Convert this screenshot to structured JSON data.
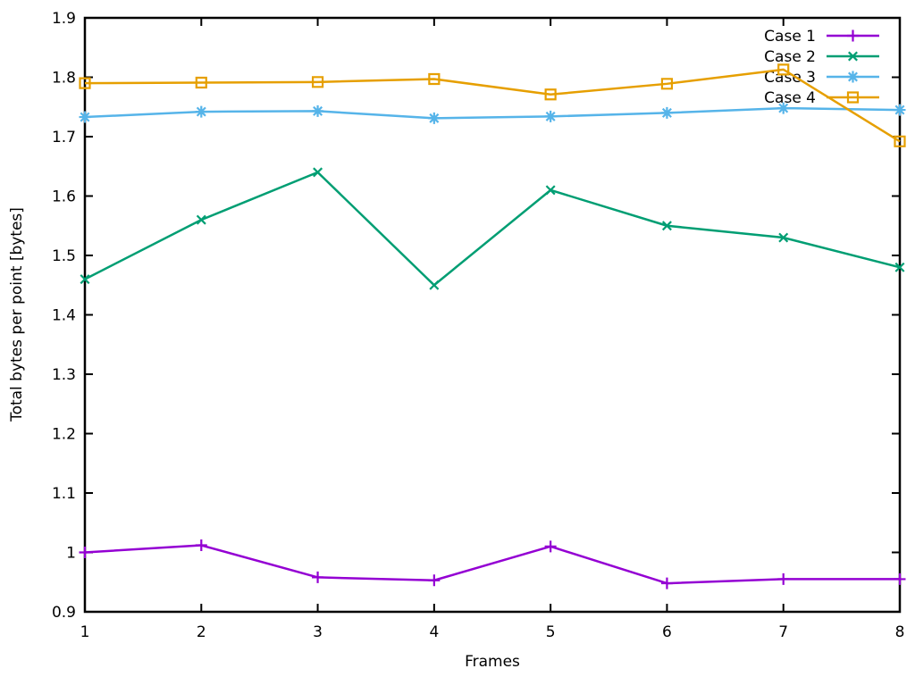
{
  "chart_data": {
    "type": "line",
    "title": "",
    "xlabel": "Frames",
    "ylabel": "Total bytes per point [bytes]",
    "xlim": [
      1,
      8
    ],
    "ylim": [
      0.9,
      1.9
    ],
    "xtick_labels": [
      "1",
      "2",
      "3",
      "4",
      "5",
      "6",
      "7",
      "8"
    ],
    "ytick_labels": [
      "0.9",
      "1",
      "1.1",
      "1.2",
      "1.3",
      "1.4",
      "1.5",
      "1.6",
      "1.7",
      "1.8",
      "1.9"
    ],
    "grid": false,
    "legend_position": "top-right-inside",
    "background_color": "#ffffff",
    "axis_color": "#000000",
    "x": [
      1,
      2,
      3,
      4,
      5,
      6,
      7,
      8
    ],
    "series": [
      {
        "name": "Case 1",
        "color": "#9400d3",
        "marker": "plus",
        "values": [
          1.0,
          1.012,
          0.958,
          0.953,
          1.01,
          0.948,
          0.955,
          0.955
        ]
      },
      {
        "name": "Case 2",
        "color": "#009e73",
        "marker": "cross",
        "values": [
          1.46,
          1.56,
          1.64,
          1.45,
          1.61,
          1.55,
          1.53,
          1.48
        ]
      },
      {
        "name": "Case 3",
        "color": "#56b4e9",
        "marker": "asterisk",
        "values": [
          1.733,
          1.742,
          1.743,
          1.731,
          1.734,
          1.74,
          1.748,
          1.745
        ]
      },
      {
        "name": "Case 4",
        "color": "#e69f00",
        "marker": "open-square",
        "values": [
          1.79,
          1.791,
          1.792,
          1.797,
          1.771,
          1.789,
          1.813,
          1.692
        ]
      }
    ]
  }
}
